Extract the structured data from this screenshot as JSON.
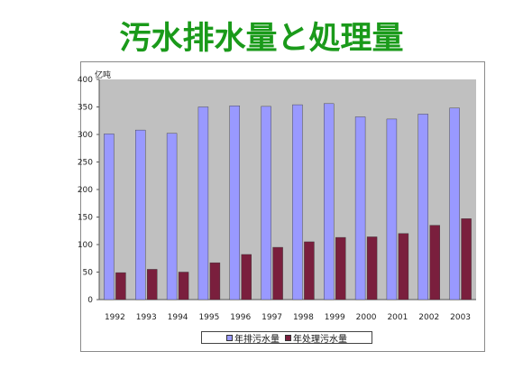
{
  "title": "汚水排水量と処理量",
  "chart_data": {
    "type": "bar",
    "y_unit_label": "亿吨",
    "categories": [
      "1992",
      "1993",
      "1994",
      "1995",
      "1996",
      "1997",
      "1998",
      "1999",
      "2000",
      "2001",
      "2002",
      "2003"
    ],
    "series": [
      {
        "name": "年排污水量",
        "color": "#9999ff",
        "values": [
          301,
          308,
          302,
          350,
          352,
          351,
          354,
          356,
          332,
          328,
          337,
          348
        ]
      },
      {
        "name": "年处理污水量",
        "color": "#7a1f3d",
        "values": [
          49,
          55,
          50,
          67,
          82,
          95,
          105,
          113,
          114,
          120,
          135,
          147
        ]
      }
    ],
    "ylim": [
      0,
      400
    ],
    "yticks": [
      0,
      50,
      100,
      150,
      200,
      250,
      300,
      350,
      400
    ],
    "plot_background": "#c0c0c0",
    "grid": false,
    "legend_position": "bottom"
  }
}
